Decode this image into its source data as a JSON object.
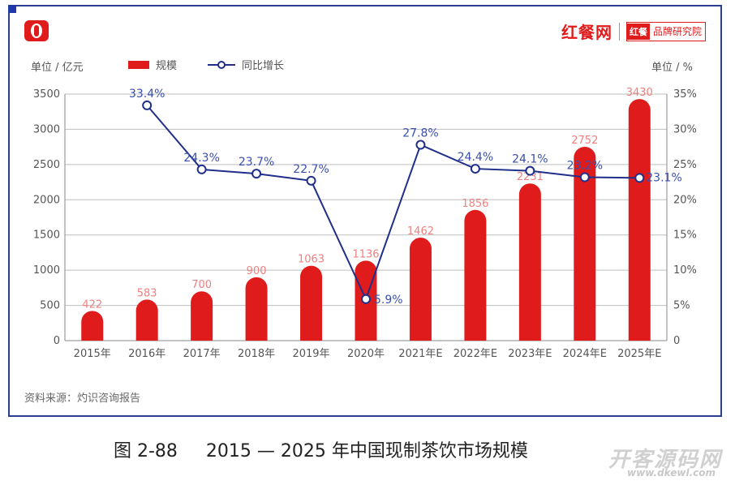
{
  "brand": {
    "name": "红餐网",
    "badge_box": "红餐",
    "badge_text": "品牌研究院"
  },
  "left_unit": "单位 / 亿元",
  "right_unit": "单位 / %",
  "source": "资料来源：灼识咨询报告",
  "caption": "图 2-88     2015 — 2025 年中国现制茶饮市场规模",
  "watermark": "开客源码网",
  "watermark_sub": "www.dkewl.com",
  "colors": {
    "bar": "#e01b1b",
    "line": "#1f2f8a",
    "bar_label": "#f08080",
    "line_label": "#3a4fb0"
  },
  "chart_data": {
    "type": "bar",
    "categories": [
      "2015年",
      "2016年",
      "2017年",
      "2018年",
      "2019年",
      "2020年",
      "2021年E",
      "2022年E",
      "2023年E",
      "2024年E",
      "2025年E"
    ],
    "series": [
      {
        "name": "规模",
        "type": "bar",
        "axis": "left",
        "values": [
          422,
          583,
          700,
          900,
          1063,
          1136,
          1462,
          1856,
          2231,
          2752,
          3430
        ],
        "labels": [
          "422",
          "583",
          "700",
          "900",
          "1063",
          "1136",
          "1462",
          "1856",
          "2231",
          "2752",
          "3430"
        ]
      },
      {
        "name": "同比增长",
        "type": "line",
        "axis": "right",
        "values": [
          null,
          33.4,
          24.3,
          23.7,
          22.7,
          5.9,
          27.8,
          24.4,
          24.1,
          23.2,
          23.1
        ],
        "labels": [
          "",
          "33.4%",
          "24.3%",
          "23.7%",
          "22.7%",
          "5.9%",
          "27.8%",
          "24.4%",
          "24.1%",
          "23.2%",
          "23.1%"
        ]
      }
    ],
    "left_axis": {
      "ylim": [
        0,
        3500
      ],
      "ticks": [
        "0",
        "500",
        "1000",
        "1500",
        "2000",
        "2500",
        "3000",
        "3500"
      ]
    },
    "right_axis": {
      "ylim": [
        0,
        35
      ],
      "ticks": [
        "0",
        "5%",
        "10%",
        "15%",
        "20%",
        "25%",
        "30%",
        "35%"
      ]
    },
    "grid": true,
    "legend_position": "top-left"
  }
}
